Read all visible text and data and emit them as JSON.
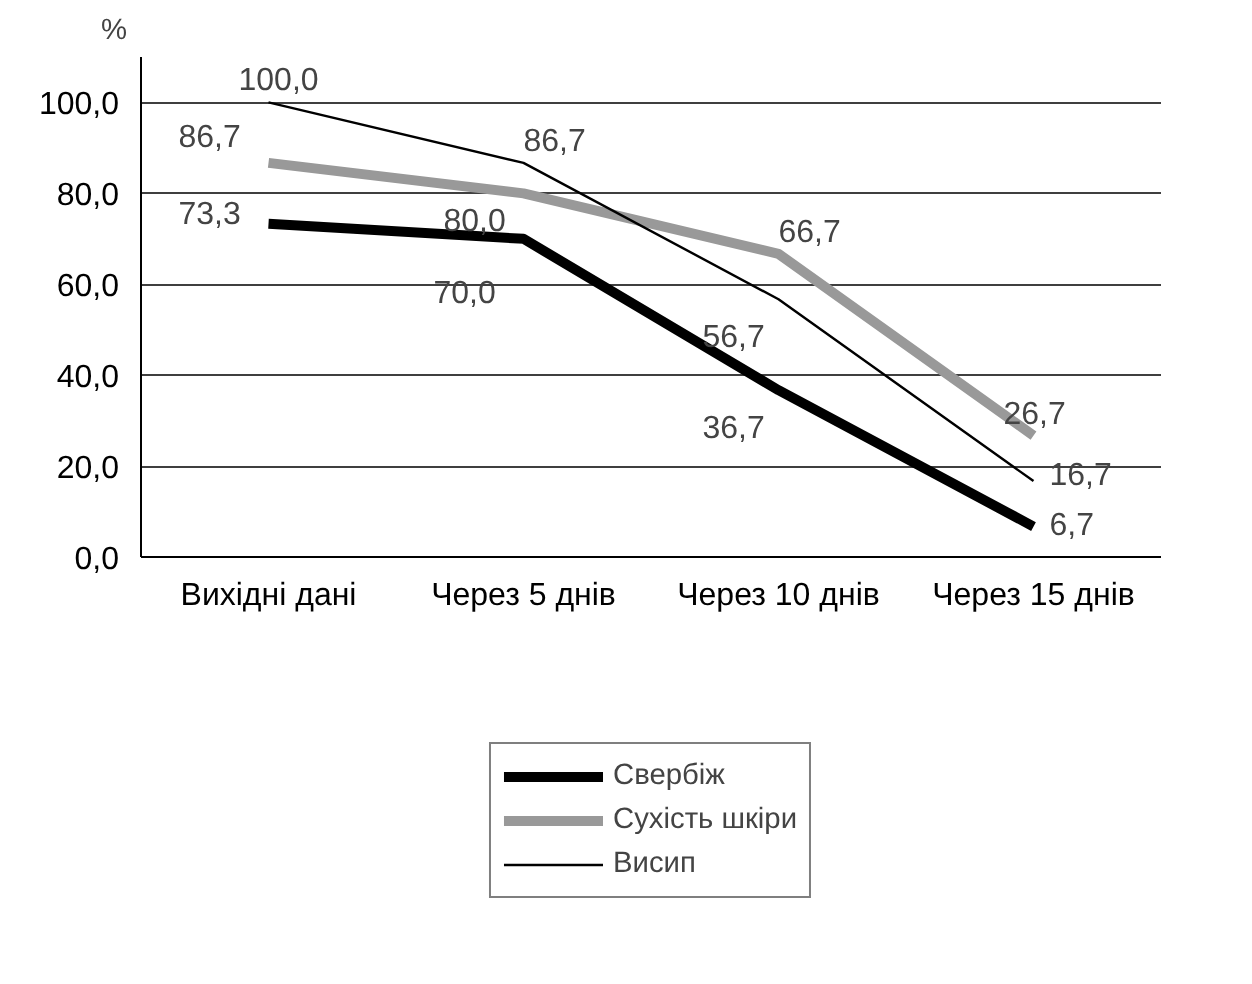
{
  "chart_data": {
    "type": "line",
    "ylabel": "%",
    "categories": [
      "Вихідні дані",
      "Через 5 днів",
      "Через 10 днів",
      "Через 15 днів"
    ],
    "ylim": [
      0,
      110
    ],
    "yticks": [
      {
        "value": 0,
        "label": "0,0"
      },
      {
        "value": 20,
        "label": "20,0"
      },
      {
        "value": 40,
        "label": "40,0"
      },
      {
        "value": 60,
        "label": "60,0"
      },
      {
        "value": 80,
        "label": "80,0"
      },
      {
        "value": 100,
        "label": "100,0"
      }
    ],
    "grid": "y",
    "legend": "bottom",
    "marker": "none",
    "line_style": "solid",
    "series": [
      {
        "name": "Свербіж",
        "color": "#000000",
        "values": [
          73.3,
          70.0,
          36.7,
          6.7
        ],
        "value_labels": [
          "73,3",
          "70,0",
          "36,7",
          "6,7"
        ]
      },
      {
        "name": "Сухість шкіри",
        "color": "#999999",
        "values": [
          86.7,
          80.0,
          66.7,
          26.7
        ],
        "value_labels": [
          "86,7",
          "80,0",
          "66,7",
          "26,7"
        ]
      },
      {
        "name": "Висип",
        "color": "#000000",
        "values": [
          100.0,
          86.7,
          56.7,
          16.7
        ],
        "value_labels": [
          "100,0",
          "86,7",
          "56,7",
          "16,7"
        ]
      }
    ]
  }
}
